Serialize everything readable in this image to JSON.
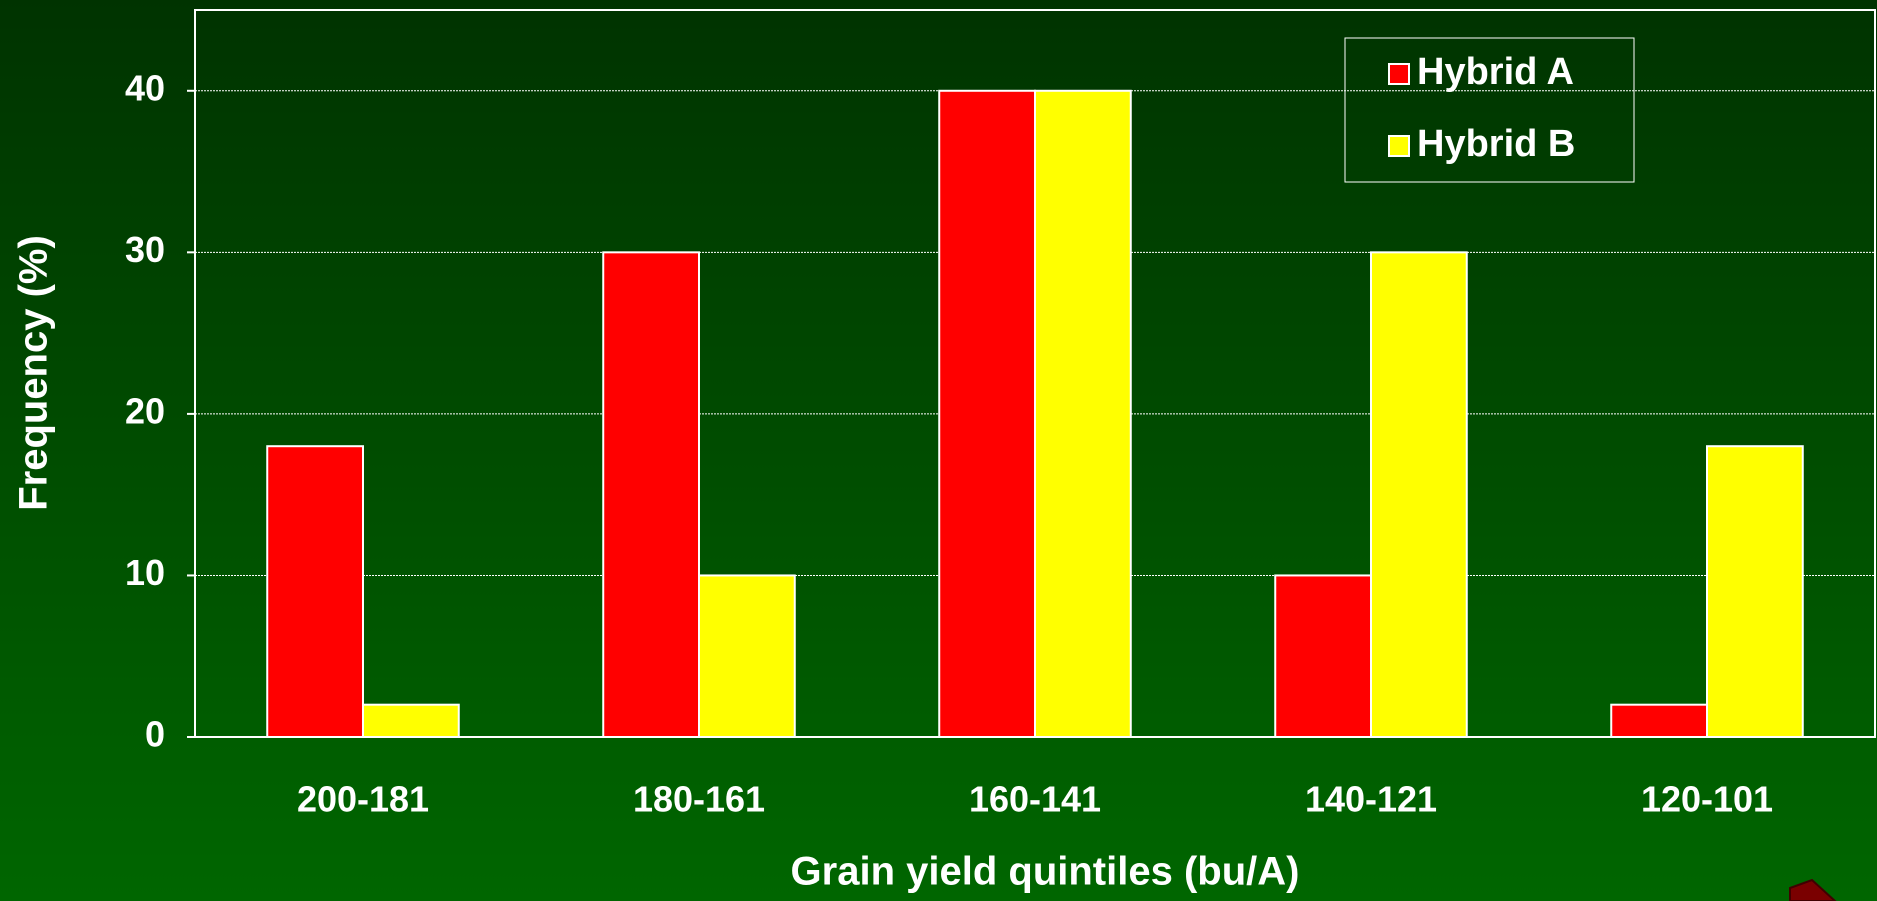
{
  "chart_data": {
    "type": "bar",
    "x_label": "Grain yield quintiles (bu/A)",
    "y_label": "Frequency (%)",
    "categories": [
      "200-181",
      "180-161",
      "160-141",
      "140-121",
      "120-101"
    ],
    "series": [
      {
        "name": "Hybrid A",
        "color": "#ff0000",
        "values": [
          18,
          30,
          40,
          10,
          2
        ]
      },
      {
        "name": "Hybrid B",
        "color": "#ffff00",
        "values": [
          2,
          10,
          40,
          30,
          18
        ]
      }
    ],
    "ylim": [
      0,
      45
    ],
    "yticks": [
      0,
      10,
      20,
      30,
      40
    ],
    "grid": true,
    "legend": "top-right"
  }
}
